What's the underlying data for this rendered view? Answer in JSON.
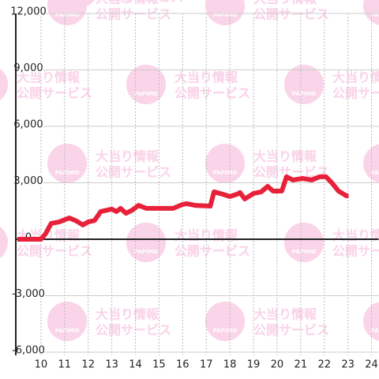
{
  "chart_data": {
    "type": "line",
    "x": [
      9,
      10,
      10.2,
      10.43,
      10.77,
      11.2,
      11.5,
      11.77,
      12,
      12.27,
      12.53,
      13,
      13.2,
      13.37,
      13.6,
      13.87,
      14.13,
      14.47,
      15.6,
      16,
      16.17,
      16.53,
      17.17,
      17.33,
      17.7,
      18,
      18.3,
      18.43,
      18.63,
      19,
      19.33,
      19.6,
      19.83,
      20.2,
      20.4,
      20.67,
      21.07,
      21.47,
      21.8,
      22.07,
      22.33,
      22.6,
      22.93,
      23.03
    ],
    "series": [
      {
        "color": "#e8213a",
        "values": [
          0,
          0,
          300,
          840,
          920,
          1130,
          970,
          760,
          920,
          1000,
          1470,
          1600,
          1470,
          1640,
          1380,
          1550,
          1800,
          1640,
          1640,
          1850,
          1890,
          1800,
          1760,
          2520,
          2390,
          2270,
          2390,
          2480,
          2140,
          2430,
          2520,
          2810,
          2560,
          2560,
          3320,
          3150,
          3230,
          3150,
          3320,
          3320,
          2980,
          2560,
          2310,
          2310
        ]
      }
    ],
    "xlim": [
      9,
      24.3
    ],
    "xticks": [
      10,
      11,
      12,
      13,
      14,
      15,
      16,
      17,
      18,
      19,
      20,
      21,
      22,
      23,
      24
    ],
    "ylim": [
      -6000,
      12000
    ],
    "yticks": [
      {
        "value": -6000,
        "label": "-6,000"
      },
      {
        "value": -3000,
        "label": "-3,000"
      },
      0,
      {
        "value": 3000,
        "label": "3,000"
      },
      {
        "value": 6000,
        "label": "6,000"
      },
      {
        "value": 9000,
        "label": "9,000"
      },
      {
        "value": 12000,
        "label": "12,000"
      }
    ],
    "grid": true
  },
  "watermark": {
    "title": "大当り情報",
    "subtitle": "公開サービス",
    "brand": "PAPIMO"
  }
}
